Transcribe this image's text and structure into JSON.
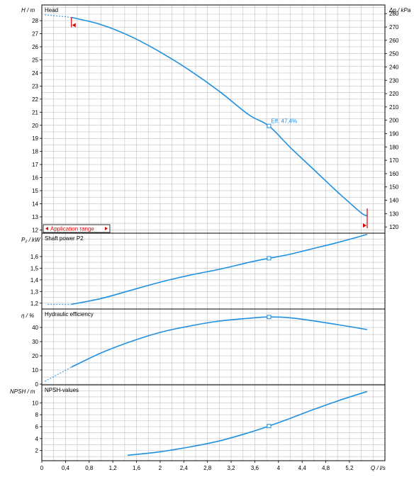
{
  "chart_data": [
    {
      "type": "line",
      "title": "Head",
      "ylabel": "H / m",
      "ylabel2": "Δp / kPa",
      "xlabel": "Q / l/s",
      "xlim": [
        0,
        5.8
      ],
      "ylim": [
        11.75,
        29.2
      ],
      "yticks": [
        "12",
        "13",
        "14",
        "15",
        "16",
        "17",
        "18",
        "19",
        "20",
        "21",
        "22",
        "23",
        "24",
        "25",
        "26",
        "27",
        "28"
      ],
      "ylim2": [
        115.3,
        286.5
      ],
      "yticks2": [
        "120",
        "130",
        "140",
        "150",
        "160",
        "170",
        "180",
        "190",
        "200",
        "210",
        "220",
        "230",
        "240",
        "250",
        "260",
        "270",
        "280"
      ],
      "series": [
        {
          "dashed_x": [
            0.05,
            0.5
          ],
          "dashed_y": [
            28.45,
            28.25
          ],
          "x": [
            0.5,
            1.0,
            1.5,
            2.0,
            2.5,
            3.0,
            3.5,
            3.84,
            4.2,
            4.6,
            5.0,
            5.4,
            5.5
          ],
          "y": [
            28.25,
            27.7,
            26.8,
            25.6,
            24.2,
            22.6,
            20.8,
            19.95,
            18.3,
            16.6,
            14.9,
            13.3,
            13.1
          ]
        }
      ],
      "duty_point": {
        "x": 3.84,
        "y": 19.95
      },
      "annotation": "Eff. 47,4%",
      "range_markers": {
        "x": [
          0.5,
          5.5
        ]
      },
      "application_range_label": "Application range"
    },
    {
      "type": "line",
      "title": "Shaft power P2",
      "ylabel": "P₂ / kW",
      "ylim": [
        1.15,
        1.8
      ],
      "yticks": [
        "1,2",
        "1,3",
        "1,4",
        "1,5",
        "1,6"
      ],
      "series": [
        {
          "dashed_x": [
            0.1,
            0.5
          ],
          "dashed_y": [
            1.19,
            1.19
          ],
          "x": [
            0.5,
            1.0,
            1.5,
            2.0,
            2.5,
            3.0,
            3.5,
            3.84,
            4.2,
            4.6,
            5.0,
            5.5
          ],
          "y": [
            1.19,
            1.24,
            1.31,
            1.38,
            1.44,
            1.49,
            1.55,
            1.585,
            1.62,
            1.67,
            1.72,
            1.79
          ]
        }
      ],
      "duty_point": {
        "x": 3.84,
        "y": 1.585
      }
    },
    {
      "type": "line",
      "title": "Hydraulic efficiency",
      "ylabel": "η / %",
      "ylim": [
        -0.5,
        53
      ],
      "yticks": [
        "0",
        "10",
        "20",
        "30",
        "40"
      ],
      "series": [
        {
          "dashed_x": [
            0.05,
            0.5
          ],
          "dashed_y": [
            2.0,
            12.0
          ],
          "x": [
            0.5,
            1.0,
            1.5,
            2.0,
            2.5,
            3.0,
            3.5,
            3.84,
            4.2,
            4.6,
            5.0,
            5.5
          ],
          "y": [
            12.0,
            22.0,
            30.0,
            36.5,
            41.0,
            44.5,
            46.5,
            47.4,
            46.8,
            44.6,
            42.0,
            38.5
          ]
        }
      ],
      "duty_point": {
        "x": 3.84,
        "y": 47.4
      }
    },
    {
      "type": "line",
      "title": "NPSH-values",
      "ylabel": "NPSH  / m",
      "ylim": [
        0.3,
        13
      ],
      "yticks": [
        "2",
        "4",
        "6",
        "8",
        "10"
      ],
      "series": [
        {
          "x": [
            1.45,
            2.0,
            2.5,
            3.0,
            3.5,
            3.84,
            4.2,
            4.6,
            5.0,
            5.5
          ],
          "y": [
            1.2,
            1.8,
            2.6,
            3.6,
            5.0,
            6.1,
            7.4,
            8.9,
            10.3,
            11.9
          ]
        }
      ],
      "duty_point": {
        "x": 3.84,
        "y": 6.1
      }
    }
  ],
  "xticks": [
    "0",
    "0,4",
    "0,8",
    "1,2",
    "1,6",
    "2",
    "2,4",
    "2,8",
    "3,2",
    "3,6",
    "4",
    "4,4",
    "4,8",
    "5,2"
  ],
  "xlabel": "Q / l/s",
  "colors": {
    "curve": "#1e90e0",
    "grid": "#c8c8c8",
    "marker": "#e00000"
  }
}
